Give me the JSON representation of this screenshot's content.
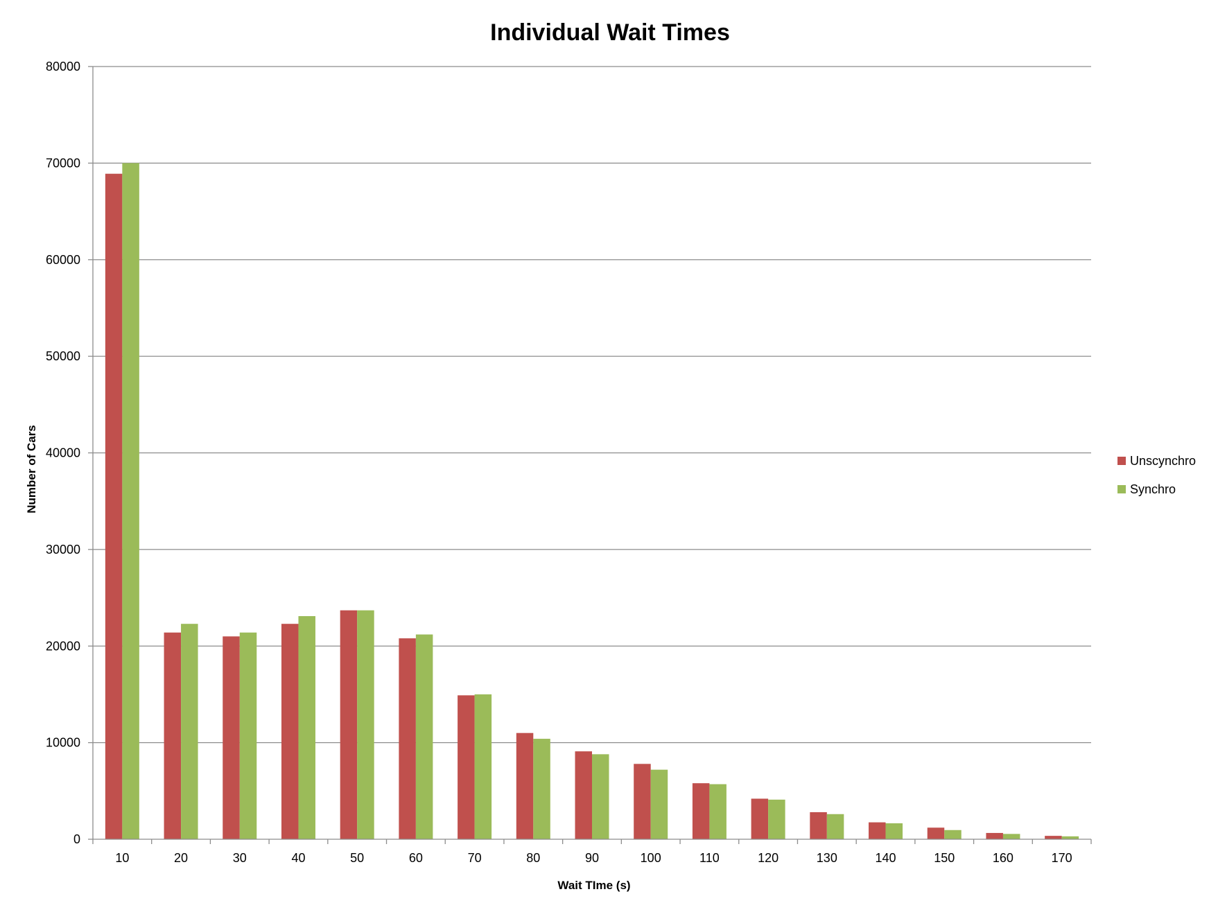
{
  "chart_data": {
    "type": "bar",
    "title": "Individual Wait Times",
    "xlabel": "Wait TIme (s)",
    "ylabel": "Number of Cars",
    "categories": [
      "10",
      "20",
      "30",
      "40",
      "50",
      "60",
      "70",
      "80",
      "90",
      "100",
      "110",
      "120",
      "130",
      "140",
      "150",
      "160",
      "170"
    ],
    "series": [
      {
        "name": "Unscynchro",
        "color": "#c0504d",
        "values": [
          68900,
          21400,
          21000,
          22300,
          23700,
          20800,
          14900,
          11000,
          9100,
          7800,
          5800,
          4200,
          2800,
          1750,
          1200,
          650,
          350
        ]
      },
      {
        "name": "Synchro",
        "color": "#9bbb59",
        "values": [
          70000,
          22300,
          21400,
          23100,
          23700,
          21200,
          15000,
          10400,
          8800,
          7200,
          5700,
          4100,
          2600,
          1650,
          950,
          550,
          300
        ]
      }
    ],
    "yticks": [
      "0",
      "10000",
      "20000",
      "30000",
      "40000",
      "50000",
      "60000",
      "70000",
      "80000"
    ],
    "ylim": [
      0,
      80000
    ],
    "grid": true,
    "legend_position": "right"
  }
}
